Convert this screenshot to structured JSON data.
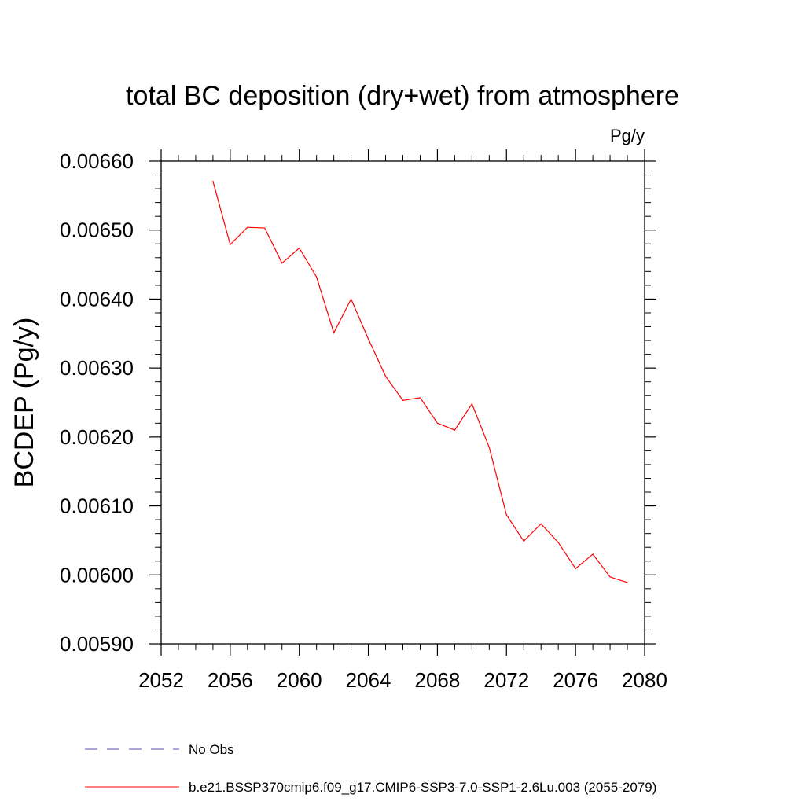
{
  "chart_data": {
    "type": "line",
    "title": "total BC deposition (dry+wet) from atmosphere",
    "units": "Pg/y",
    "xlabel": "",
    "ylabel": "BCDEP  (Pg/y)",
    "xlim": [
      2052,
      2080
    ],
    "ylim": [
      0.0059,
      0.0066
    ],
    "x_ticks": [
      2052,
      2056,
      2060,
      2064,
      2068,
      2072,
      2076,
      2080
    ],
    "y_ticks": [
      0.0059,
      0.006,
      0.0061,
      0.0062,
      0.0063,
      0.0064,
      0.0065,
      0.0066
    ],
    "y_tick_labels": [
      "0.00590",
      "0.00600",
      "0.00610",
      "0.00620",
      "0.00630",
      "0.00640",
      "0.00650",
      "0.00660"
    ],
    "x_tick_labels": [
      "2052",
      "2056",
      "2060",
      "2064",
      "2068",
      "2072",
      "2076",
      "2080"
    ],
    "grid": false,
    "legend_position": "bottom",
    "series": [
      {
        "name": "b.e21.BSSP370cmip6.f09_g17.CMIP6-SSP3-7.0-SSP1-2.6Lu.003 (2055-2079)",
        "color": "#ff0000",
        "style": "solid",
        "x": [
          2055,
          2056,
          2057,
          2058,
          2059,
          2060,
          2061,
          2062,
          2063,
          2064,
          2065,
          2066,
          2067,
          2068,
          2069,
          2070,
          2071,
          2072,
          2073,
          2074,
          2075,
          2076,
          2077,
          2078,
          2079
        ],
        "y": [
          0.006571,
          0.006479,
          0.006504,
          0.006503,
          0.006452,
          0.006474,
          0.006432,
          0.006351,
          0.0064,
          0.006342,
          0.006288,
          0.006253,
          0.006257,
          0.00622,
          0.00621,
          0.006248,
          0.006185,
          0.006087,
          0.006049,
          0.006074,
          0.006047,
          0.006009,
          0.00603,
          0.005997,
          0.005989
        ]
      },
      {
        "name": "No Obs",
        "color": "#5b4fa8",
        "style": "dashed",
        "x": [],
        "y": []
      }
    ]
  }
}
